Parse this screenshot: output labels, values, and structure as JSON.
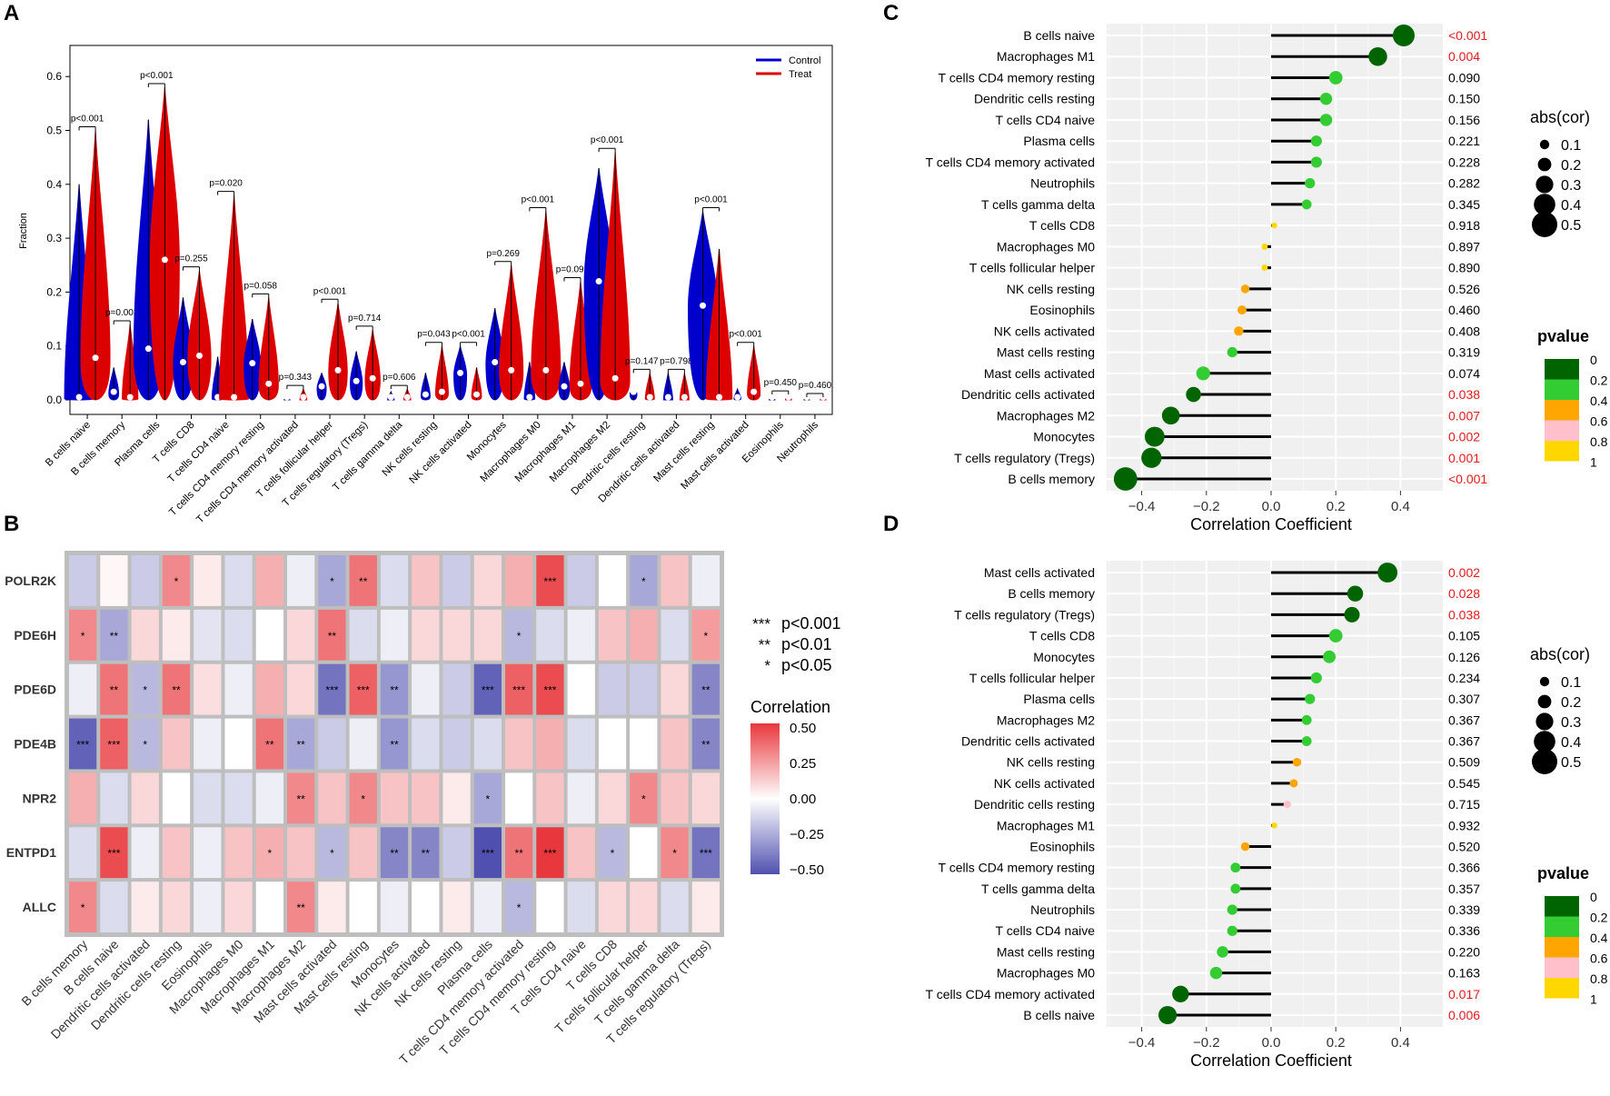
{
  "panels": {
    "a": "A",
    "b": "B",
    "c": "C",
    "d": "D"
  },
  "chart_data": [
    {
      "type": "violin",
      "panel": "A",
      "ylabel": "Fraction",
      "ylim": [
        0,
        0.65
      ],
      "yticks": [
        0.0,
        0.1,
        0.2,
        0.3,
        0.4,
        0.5,
        0.6
      ],
      "legend": {
        "position": "top-right",
        "entries": [
          {
            "name": "Control",
            "color": "#0000cc"
          },
          {
            "name": "Treat",
            "color": "#dd0000"
          }
        ]
      },
      "categories": [
        "B cells naive",
        "B cells memory",
        "Plasma cells",
        "T cells CD8",
        "T cells CD4 naive",
        "T cells CD4 memory resting",
        "T cells CD4 memory activated",
        "T cells follicular helper",
        "T cells regulatory (Tregs)",
        "T cells gamma delta",
        "NK cells resting",
        "NK cells activated",
        "Monocytes",
        "Macrophages M0",
        "Macrophages M1",
        "Macrophages M2",
        "Dendritic cells resting",
        "Dendritic cells activated",
        "Mast cells resting",
        "Mast cells activated",
        "Eosinophils",
        "Neutrophils"
      ],
      "pvalues": [
        "p<0.001",
        "p=0.003",
        "p<0.001",
        "p=0.255",
        "p=0.020",
        "p=0.058",
        "p=0.343",
        "p<0.001",
        "p=0.714",
        "p=0.606",
        "p=0.043",
        "p<0.001",
        "p=0.269",
        "p<0.001",
        "p=0.092",
        "p<0.001",
        "p=0.147",
        "p=0.798",
        "p<0.001",
        "p<0.001",
        "p=0.450",
        "p=0.460"
      ],
      "series": [
        {
          "name": "Control",
          "max": [
            0.4,
            0.06,
            0.52,
            0.19,
            0.08,
            0.15,
            0.005,
            0.05,
            0.09,
            0.015,
            0.05,
            0.1,
            0.17,
            0.07,
            0.07,
            0.43,
            0.02,
            0.05,
            0.35,
            0.02,
            0.005,
            0.003
          ],
          "median": [
            0.005,
            0.015,
            0.095,
            0.07,
            0.005,
            0.068,
            0.0,
            0.025,
            0.035,
            0.0,
            0.01,
            0.05,
            0.07,
            0.005,
            0.025,
            0.22,
            0.015,
            0.0,
            0.175,
            0.005,
            0.0,
            0.0
          ]
        },
        {
          "name": "Treat",
          "max": [
            0.5,
            0.14,
            0.58,
            0.24,
            0.38,
            0.19,
            0.02,
            0.18,
            0.13,
            0.02,
            0.1,
            0.06,
            0.25,
            0.35,
            0.22,
            0.46,
            0.05,
            0.05,
            0.28,
            0.1,
            0.01,
            0.005
          ],
          "median": [
            0.078,
            0.005,
            0.26,
            0.082,
            0.005,
            0.03,
            0.0,
            0.055,
            0.04,
            0.0,
            0.015,
            0.01,
            0.055,
            0.055,
            0.03,
            0.04,
            0.005,
            0.0,
            0.005,
            0.015,
            0.0,
            0.0
          ]
        }
      ]
    },
    {
      "type": "heatmap",
      "panel": "B",
      "rows": [
        "POLR2K",
        "PDE6H",
        "PDE6D",
        "PDE4B",
        "NPR2",
        "ENTPD1",
        "ALLC"
      ],
      "columns": [
        "B cells memory",
        "B cells naive",
        "Dendritic cells activated",
        "Dendritic cells resting",
        "Eosinophils",
        "Macrophages M0",
        "Macrophages M1",
        "Macrophages M2",
        "Mast cells activated",
        "Mast cells resting",
        "Monocytes",
        "NK cells activated",
        "NK cells resting",
        "Plasma cells",
        "T cells CD4 memory activated",
        "T cells CD4 memory resting",
        "T cells CD4 naive",
        "T cells CD8",
        "T cells follicular helper",
        "T cells gamma delta",
        "T cells regulatory (Tregs)"
      ],
      "values": [
        [
          -0.15,
          0.02,
          -0.15,
          0.3,
          0.05,
          -0.1,
          0.2,
          -0.05,
          -0.25,
          0.35,
          -0.1,
          0.15,
          -0.15,
          0.1,
          0.2,
          0.45,
          -0.15,
          0.0,
          -0.25,
          0.15,
          -0.05
        ],
        [
          0.3,
          -0.25,
          0.1,
          0.05,
          -0.08,
          -0.1,
          0.0,
          0.1,
          0.35,
          -0.1,
          -0.05,
          0.1,
          0.1,
          0.1,
          -0.2,
          -0.1,
          -0.05,
          0.15,
          0.2,
          -0.1,
          0.25
        ],
        [
          -0.05,
          0.35,
          -0.2,
          0.35,
          0.08,
          -0.05,
          0.2,
          0.1,
          -0.4,
          0.4,
          -0.3,
          -0.05,
          -0.15,
          -0.45,
          0.4,
          0.45,
          0.0,
          -0.15,
          -0.15,
          0.1,
          -0.35
        ],
        [
          -0.45,
          0.4,
          -0.2,
          0.15,
          -0.05,
          0.0,
          0.35,
          -0.25,
          -0.15,
          -0.05,
          -0.3,
          -0.1,
          -0.15,
          -0.1,
          0.15,
          0.2,
          -0.1,
          0.0,
          0.0,
          0.15,
          -0.35
        ],
        [
          0.2,
          -0.1,
          0.1,
          0.0,
          -0.1,
          -0.1,
          -0.05,
          0.3,
          0.15,
          0.3,
          0.15,
          0.15,
          0.05,
          -0.25,
          0.0,
          0.15,
          -0.05,
          0.1,
          0.3,
          0.15,
          0.1
        ],
        [
          -0.1,
          0.45,
          -0.05,
          0.15,
          -0.05,
          0.15,
          0.2,
          0.15,
          -0.2,
          0.15,
          -0.35,
          -0.35,
          -0.15,
          -0.5,
          0.35,
          0.5,
          0.15,
          -0.2,
          0.0,
          0.3,
          -0.4
        ],
        [
          0.3,
          -0.1,
          0.05,
          0.1,
          -0.05,
          0.1,
          0.0,
          0.3,
          0.05,
          0.0,
          -0.05,
          0.0,
          0.05,
          -0.05,
          -0.2,
          0.0,
          -0.1,
          0.1,
          0.1,
          -0.1,
          0.05
        ]
      ],
      "stars": [
        [
          "",
          "",
          "",
          "*",
          "",
          "",
          "",
          "",
          "*",
          "**",
          "",
          "",
          "",
          "",
          "",
          "***",
          "",
          "",
          "*",
          "",
          ""
        ],
        [
          "*",
          "**",
          "",
          "",
          "",
          "",
          "",
          "",
          "**",
          "",
          "",
          "",
          "",
          "",
          "*",
          "",
          "",
          "",
          "",
          "",
          "*"
        ],
        [
          "",
          "**",
          "*",
          "**",
          "",
          "",
          "",
          "",
          "***",
          "***",
          "**",
          "",
          "",
          "***",
          "***",
          "***",
          "",
          "",
          "",
          "",
          "**"
        ],
        [
          "***",
          "***",
          "*",
          "",
          "",
          "",
          "**",
          "**",
          "",
          "",
          "**",
          "",
          "",
          "",
          "",
          "",
          "",
          "",
          "",
          "",
          "**"
        ],
        [
          "",
          "",
          "",
          "",
          "",
          "",
          "",
          "**",
          "",
          "*",
          "",
          "",
          "",
          "*",
          "",
          "",
          "",
          "",
          "*",
          "",
          ""
        ],
        [
          "",
          "***",
          "",
          "",
          "",
          "",
          "*",
          "",
          "*",
          "",
          "**",
          "**",
          "",
          "***",
          "**",
          "***",
          "",
          "*",
          "",
          "*",
          "***"
        ],
        [
          "*",
          "",
          "",
          "",
          "",
          "",
          "",
          "**",
          "",
          "",
          "",
          "",
          "",
          "",
          "*",
          "",
          "",
          "",
          "",
          "",
          ""
        ]
      ],
      "significance_legend": [
        {
          "symbol": "***",
          "label": "p<0.001"
        },
        {
          "symbol": "**",
          "label": "p<0.01"
        },
        {
          "symbol": "*",
          "label": "p<0.05"
        }
      ],
      "colorbar": {
        "title": "Correlation",
        "ticks": [
          "0.50",
          "0.25",
          "0.00",
          "−0.25",
          "−0.50"
        ],
        "range": [
          -0.5,
          0.5
        ]
      }
    },
    {
      "type": "lollipop",
      "panel": "C",
      "xlabel": "Correlation Coefficient",
      "xlim": [
        -0.5,
        0.5
      ],
      "xticks": [
        "−0.4",
        "−0.2",
        "0.0",
        "0.2",
        "0.4"
      ],
      "categories": [
        "B cells naive",
        "Macrophages M1",
        "T cells CD4 memory resting",
        "Dendritic cells resting",
        "T cells CD4 naive",
        "Plasma cells",
        "T cells CD4 memory activated",
        "Neutrophils",
        "T cells gamma delta",
        "T cells CD8",
        "Macrophages M0",
        "T cells follicular helper",
        "NK cells resting",
        "Eosinophils",
        "NK cells activated",
        "Mast cells resting",
        "Mast cells activated",
        "Dendritic cells activated",
        "Macrophages M2",
        "Monocytes",
        "T cells regulatory (Tregs)",
        "B cells memory"
      ],
      "values": [
        0.41,
        0.33,
        0.2,
        0.17,
        0.17,
        0.14,
        0.14,
        0.12,
        0.11,
        0.01,
        -0.02,
        -0.02,
        -0.08,
        -0.09,
        -0.1,
        -0.12,
        -0.21,
        -0.24,
        -0.31,
        -0.36,
        -0.37,
        -0.45
      ],
      "pvalues": [
        "<0.001",
        "0.004",
        "0.090",
        "0.150",
        "0.156",
        "0.221",
        "0.228",
        "0.282",
        "0.345",
        "0.918",
        "0.897",
        "0.890",
        "0.526",
        "0.460",
        "0.408",
        "0.319",
        "0.074",
        "0.038",
        "0.007",
        "0.002",
        "0.001",
        "<0.001"
      ],
      "legend_size": {
        "title": "abs(cor)",
        "entries": [
          "0.1",
          "0.2",
          "0.3",
          "0.4",
          "0.5"
        ]
      },
      "legend_color": {
        "title": "pvalue",
        "entries": [
          "0",
          "0.2",
          "0.4",
          "0.6",
          "0.8",
          "1"
        ]
      }
    },
    {
      "type": "lollipop",
      "panel": "D",
      "xlabel": "Correlation Coefficient",
      "xlim": [
        -0.5,
        0.5
      ],
      "xticks": [
        "−0.4",
        "−0.2",
        "0.0",
        "0.2",
        "0.4"
      ],
      "categories": [
        "Mast cells activated",
        "B cells memory",
        "T cells regulatory (Tregs)",
        "T cells CD8",
        "Monocytes",
        "T cells follicular helper",
        "Plasma cells",
        "Macrophages M2",
        "Dendritic cells activated",
        "NK cells resting",
        "NK cells activated",
        "Dendritic cells resting",
        "Macrophages M1",
        "Eosinophils",
        "T cells CD4 memory resting",
        "T cells gamma delta",
        "Neutrophils",
        "T cells CD4 naive",
        "Mast cells resting",
        "Macrophages M0",
        "T cells CD4 memory activated",
        "B cells naive"
      ],
      "values": [
        0.36,
        0.26,
        0.25,
        0.2,
        0.18,
        0.14,
        0.12,
        0.11,
        0.11,
        0.08,
        0.07,
        0.05,
        0.01,
        -0.08,
        -0.11,
        -0.11,
        -0.12,
        -0.12,
        -0.15,
        -0.17,
        -0.28,
        -0.32
      ],
      "pvalues": [
        "0.002",
        "0.028",
        "0.038",
        "0.105",
        "0.126",
        "0.234",
        "0.307",
        "0.367",
        "0.367",
        "0.509",
        "0.545",
        "0.715",
        "0.932",
        "0.520",
        "0.366",
        "0.357",
        "0.339",
        "0.336",
        "0.220",
        "0.163",
        "0.017",
        "0.006"
      ],
      "legend_size": {
        "title": "abs(cor)",
        "entries": [
          "0.1",
          "0.2",
          "0.3",
          "0.4",
          "0.5"
        ]
      },
      "legend_color": {
        "title": "pvalue",
        "entries": [
          "0",
          "0.2",
          "0.4",
          "0.6",
          "0.8",
          "1"
        ]
      }
    }
  ],
  "colors": {
    "control": "#0000cc",
    "treat": "#dd0000",
    "p_green_dark": "#006400",
    "p_green": "#33cc33",
    "p_orange": "#ffa500",
    "p_pink": "#ffc0cb",
    "p_yellow": "#ffd700",
    "sig_red": "#e41a1c",
    "heat_high": "#e8383d",
    "heat_low": "#5050b0"
  }
}
